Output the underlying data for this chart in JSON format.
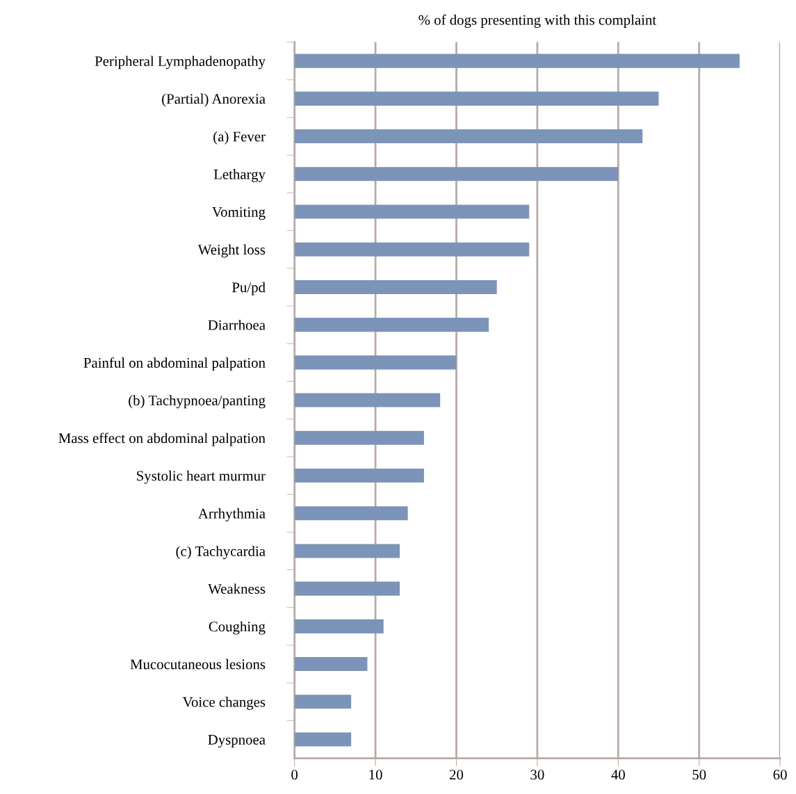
{
  "chart_data": {
    "type": "bar",
    "orientation": "horizontal",
    "xlabel": "% of dogs presenting with this complaint",
    "categories": [
      "Peripheral Lymphadenopathy",
      "(Partial) Anorexia",
      "(a) Fever",
      "Lethargy",
      "Vomiting",
      "Weight loss",
      "Pu/pd",
      "Diarrhoea",
      "Painful on abdominal palpation",
      "(b) Tachypnoea/panting",
      "Mass effect on abdominal palpation",
      "Systolic heart murmur",
      "Arrhythmia",
      "(c) Tachycardia",
      "Weakness",
      "Coughing",
      "Mucocutaneous lesions",
      "Voice changes",
      "Dyspnoea"
    ],
    "values": [
      55,
      45,
      43,
      40,
      29,
      29,
      25,
      24,
      20,
      18,
      16,
      16,
      14,
      13,
      13,
      11,
      9,
      7,
      7
    ],
    "color": "#7b94b8",
    "xlim": [
      0,
      60
    ],
    "xticks": [
      0,
      10,
      20,
      30,
      40,
      50,
      60
    ],
    "grid": "x",
    "legend": false
  }
}
